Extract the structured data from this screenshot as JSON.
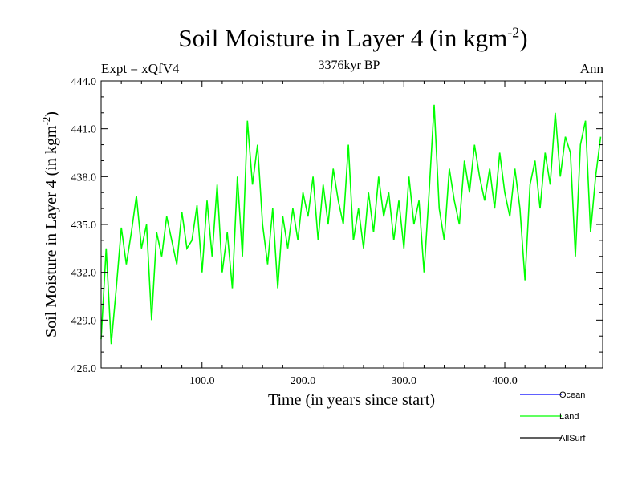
{
  "chart_data": {
    "type": "line",
    "title": "Soil Moisture in Layer 4 (in kgm",
    "title_sup": "-2",
    "title_close": ")",
    "subtitle": "3376kyr BP",
    "left_label": "Expt = xQfV4",
    "right_label": "Ann",
    "xlabel": "Time (in years since start)",
    "ylabel": "Soil Moisture in Layer 4 (in kgm",
    "ylabel_sup": "-2",
    "ylabel_close": ")",
    "xlim": [
      0,
      497
    ],
    "ylim": [
      426.0,
      444.0
    ],
    "xticks": [
      100,
      200,
      300,
      400
    ],
    "xtick_labels": [
      "100.0",
      "200.0",
      "300.0",
      "400.0"
    ],
    "yticks": [
      426,
      429,
      432,
      435,
      438,
      441,
      444
    ],
    "ytick_labels": [
      "426.0",
      "429.0",
      "432.0",
      "435.0",
      "438.0",
      "441.0",
      "444.0"
    ],
    "series": [
      {
        "name": "Land",
        "color": "#00ff00",
        "x": [
          0,
          5,
          10,
          15,
          20,
          25,
          30,
          35,
          40,
          45,
          50,
          55,
          60,
          65,
          70,
          75,
          80,
          85,
          90,
          95,
          100,
          105,
          110,
          115,
          120,
          125,
          130,
          135,
          140,
          145,
          150,
          155,
          160,
          165,
          170,
          175,
          180,
          185,
          190,
          195,
          200,
          205,
          210,
          215,
          220,
          225,
          230,
          235,
          240,
          245,
          250,
          255,
          260,
          265,
          270,
          275,
          280,
          285,
          290,
          295,
          300,
          305,
          310,
          315,
          320,
          325,
          330,
          335,
          340,
          345,
          350,
          355,
          360,
          365,
          370,
          375,
          380,
          385,
          390,
          395,
          400,
          405,
          410,
          415,
          420,
          425,
          430,
          435,
          440,
          445,
          450,
          455,
          460,
          465,
          470,
          475,
          480,
          485,
          490,
          495
        ],
        "values": [
          427.8,
          433.5,
          427.5,
          431.0,
          434.8,
          432.5,
          434.5,
          436.8,
          433.5,
          435.0,
          429.0,
          434.5,
          433.0,
          435.5,
          434.0,
          432.5,
          435.8,
          433.5,
          434.0,
          436.2,
          432.0,
          436.5,
          433.0,
          437.5,
          432.0,
          434.5,
          431.0,
          438.0,
          433.0,
          441.5,
          437.5,
          440.0,
          435.0,
          432.5,
          436.0,
          431.0,
          435.5,
          433.5,
          436.0,
          434.0,
          437.0,
          435.5,
          438.0,
          434.0,
          437.5,
          435.0,
          438.5,
          436.5,
          435.0,
          440.0,
          434.0,
          436.0,
          433.5,
          437.0,
          434.5,
          438.0,
          435.5,
          437.0,
          434.0,
          436.5,
          433.5,
          438.0,
          435.0,
          436.5,
          432.0,
          437.0,
          442.5,
          436.0,
          434.0,
          438.5,
          436.5,
          435.0,
          439.0,
          437.0,
          440.0,
          438.0,
          436.5,
          438.5,
          436.0,
          439.5,
          437.0,
          435.5,
          438.5,
          436.0,
          431.5,
          437.5,
          439.0,
          436.0,
          439.5,
          437.5,
          442.0,
          438.0,
          440.5,
          439.5,
          433.0,
          440.0,
          441.5,
          434.5,
          438.0,
          440.5
        ]
      }
    ],
    "legend": [
      {
        "label": "Ocean",
        "color": "#0000ff"
      },
      {
        "label": "Land",
        "color": "#00ff00"
      },
      {
        "label": "AllSurf",
        "color": "#000000"
      }
    ]
  }
}
